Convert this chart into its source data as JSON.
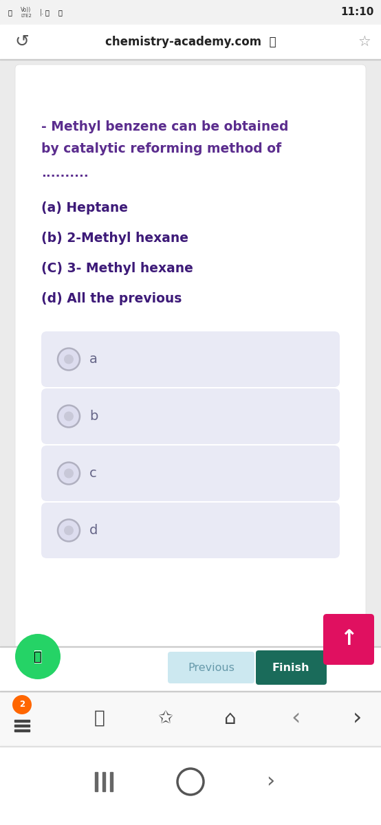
{
  "bg_color": "#ebebeb",
  "content_bg": "#ffffff",
  "status_bar_bg": "#f2f2f2",
  "status_bar_text": "11:10",
  "url_text": "chemistry-academy.com",
  "question_line1": "- Methyl benzene can be obtained",
  "question_line2": "by catalytic reforming method of",
  "question_dots": "..........",
  "option_a": "(a) Heptane",
  "option_b": "(b) 2-Methyl hexane",
  "option_c": "(C) 3- Methyl hexane",
  "option_d": "(d) All the previous",
  "choice_a": "a",
  "choice_b": "b",
  "choice_c": "c",
  "choice_d": "d",
  "question_color": "#5b2d8e",
  "option_color": "#3d1a78",
  "choice_box_color": "#e9eaf5",
  "choice_text_color": "#555577",
  "radio_fill": "#ddddef",
  "radio_stroke": "#b0b0c0",
  "prev_btn_color": "#cce8f0",
  "prev_text_color": "#6699aa",
  "finish_btn_color": "#1a6b5a",
  "finish_text_color": "#ffffff",
  "up_btn_color": "#e01060",
  "whatsapp_color": "#25d366",
  "separator_color": "#cccccc",
  "nav_bg": "#f8f8f8",
  "sys_bar_bg": "#ffffff",
  "badge_color": "#ff6600"
}
